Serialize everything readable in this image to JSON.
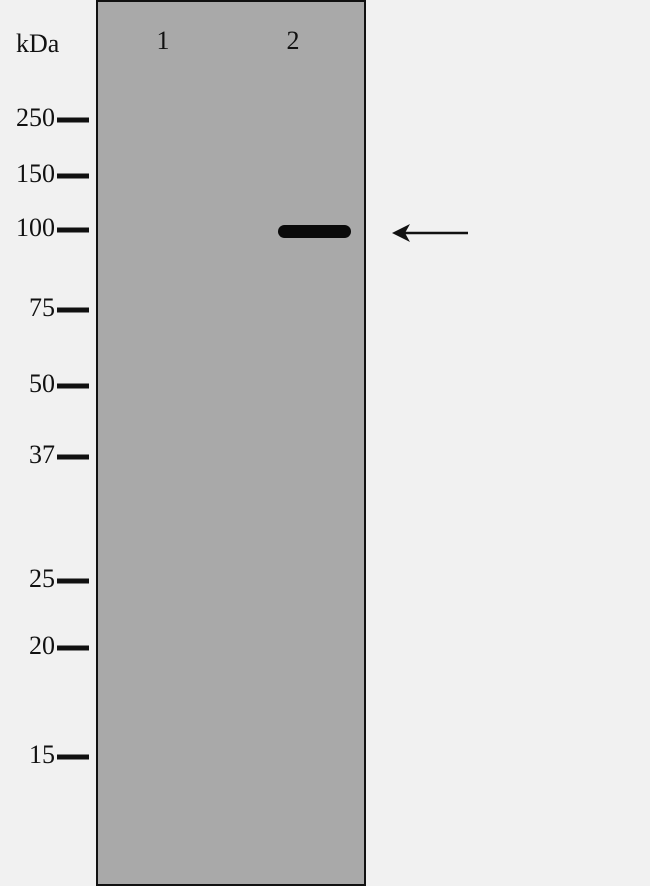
{
  "unit_label": "kDa",
  "lanes": [
    "1",
    "2"
  ],
  "markers": [
    250,
    150,
    100,
    75,
    50,
    37,
    25,
    20,
    15
  ]
}
